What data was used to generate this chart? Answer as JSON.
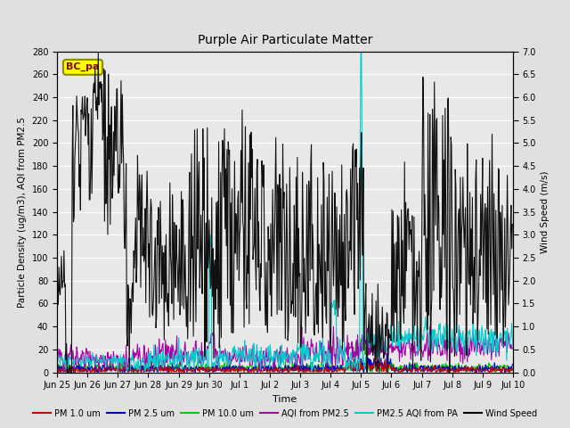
{
  "title": "Purple Air Particulate Matter",
  "xlabel": "Time",
  "ylabel_left": "Particle Density (ug/m3), AQI from PM2.5",
  "ylabel_right": "Wind Speed (m/s)",
  "ylim_left": [
    0,
    280
  ],
  "ylim_right": [
    0,
    7.0
  ],
  "yticks_left": [
    0,
    20,
    40,
    60,
    80,
    100,
    120,
    140,
    160,
    180,
    200,
    220,
    240,
    260,
    280
  ],
  "yticks_right": [
    0.0,
    0.5,
    1.0,
    1.5,
    2.0,
    2.5,
    3.0,
    3.5,
    4.0,
    4.5,
    5.0,
    5.5,
    6.0,
    6.5,
    7.0
  ],
  "fig_bg_color": "#e0e0e0",
  "plot_bg_color": "#e8e8e8",
  "grid_color": "white",
  "annotation_text": "BC_pa",
  "annotation_color": "#8B0000",
  "annotation_bg": "#FFFF00",
  "annotation_border": "#8B8B00",
  "legend_entries": [
    {
      "label": "PM 1.0 um",
      "color": "#cc0000",
      "lw": 1.5
    },
    {
      "label": "PM 2.5 um",
      "color": "#0000cc",
      "lw": 1.5
    },
    {
      "label": "PM 10.0 um",
      "color": "#00cc00",
      "lw": 1.5
    },
    {
      "label": "AQI from PM2.5",
      "color": "#aa00aa",
      "lw": 1.5
    },
    {
      "label": "PM2.5 AQI from PA",
      "color": "#00cccc",
      "lw": 1.5
    },
    {
      "label": "Wind Speed",
      "color": "#000000",
      "lw": 1.5
    }
  ],
  "x_tick_labels": [
    "Jun 25",
    "Jun 26",
    "Jun 27",
    "Jun 28",
    "Jun 29",
    "Jun 30",
    "Jul 1",
    "Jul 2",
    "Jul 3",
    "Jul 4",
    "Jul 5",
    "Jul 6",
    "Jul 7",
    "Jul 8",
    "Jul 9",
    "Jul 10"
  ],
  "num_points": 720,
  "wind_scale": 40.0,
  "figsize": [
    6.4,
    4.8
  ],
  "dpi": 100
}
